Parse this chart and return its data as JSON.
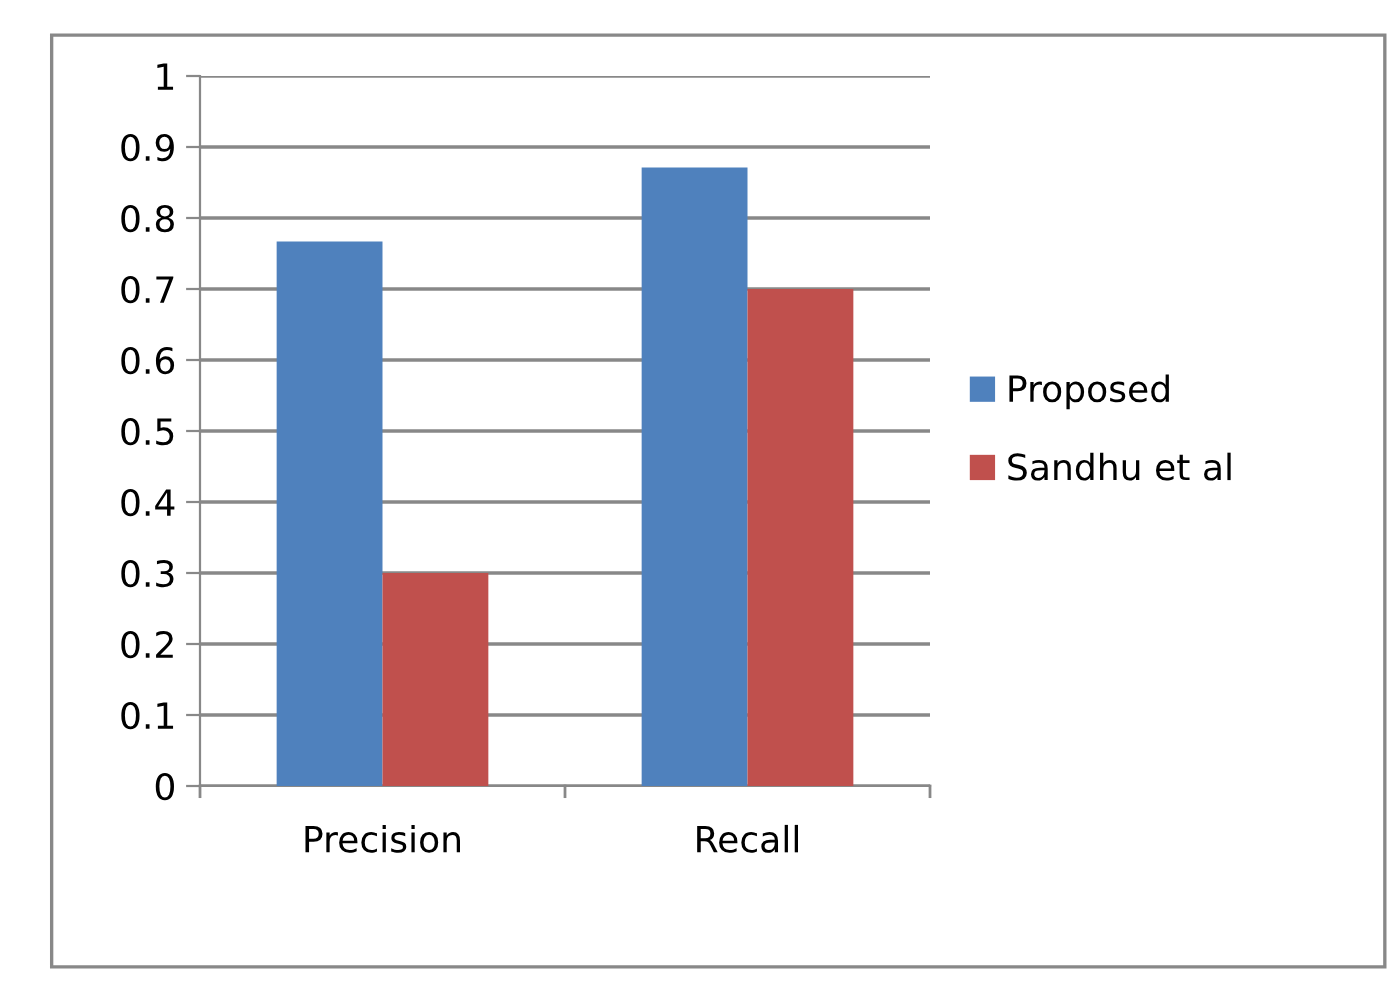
{
  "chart_data": {
    "type": "bar",
    "categories": [
      "Precision",
      "Recall"
    ],
    "series": [
      {
        "name": "Proposed",
        "color": "#4f81bd",
        "values": [
          0.767,
          0.871
        ]
      },
      {
        "name": "Sandhu et al",
        "color": "#c0504d",
        "values": [
          0.3,
          0.7
        ]
      }
    ],
    "ylim": [
      0,
      1
    ],
    "yticks": [
      0,
      0.1,
      0.2,
      0.3,
      0.4,
      0.5,
      0.6,
      0.7,
      0.8,
      0.9,
      1
    ],
    "grid": "y",
    "legend": "right"
  }
}
